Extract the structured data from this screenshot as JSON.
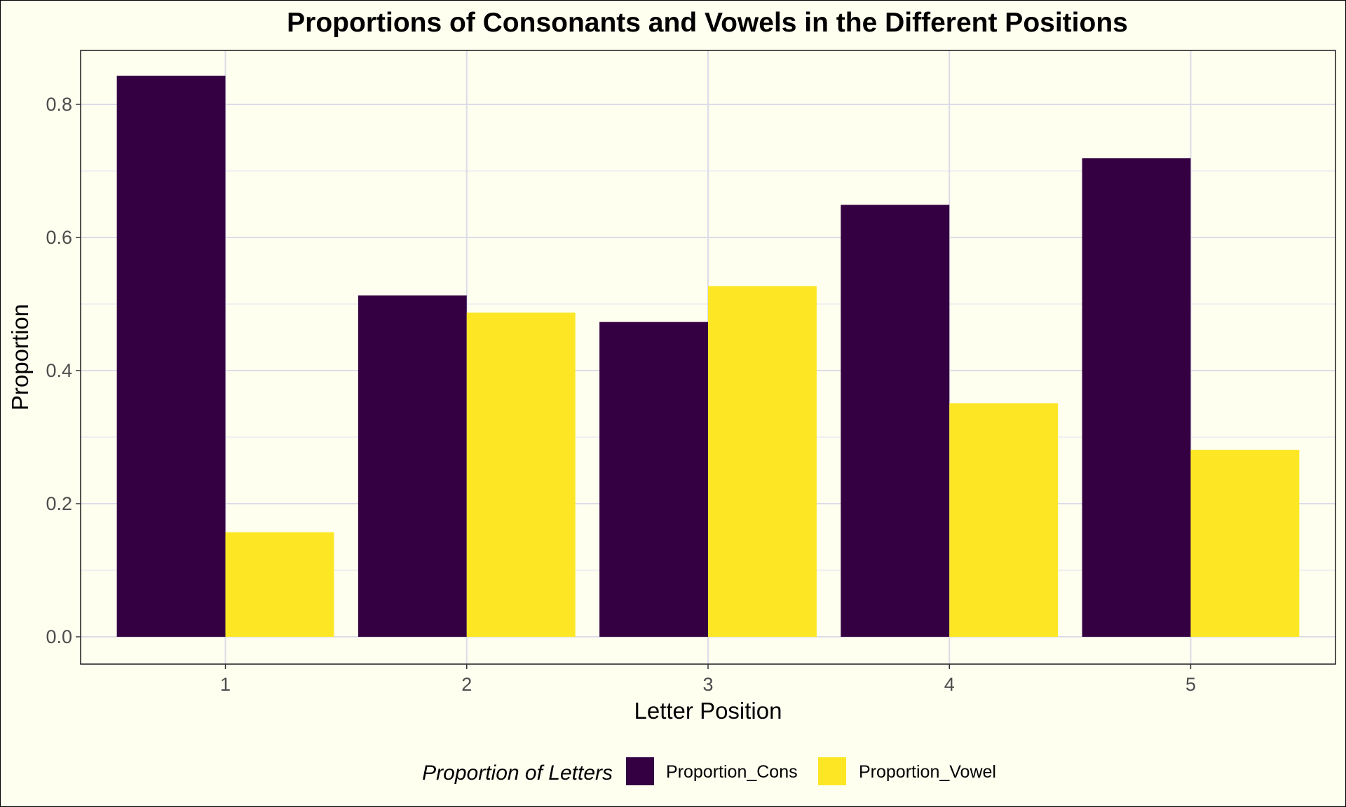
{
  "chart_data": {
    "type": "bar",
    "title": "Proportions of Consonants and Vowels in the Different Positions",
    "xlabel": "Letter Position",
    "ylabel": "Proportion",
    "categories": [
      "1",
      "2",
      "3",
      "4",
      "5"
    ],
    "series": [
      {
        "name": "Proportion_Cons",
        "color": "#340042",
        "values": [
          0.843,
          0.513,
          0.473,
          0.649,
          0.719
        ]
      },
      {
        "name": "Proportion_Vowel",
        "color": "#fde725",
        "values": [
          0.157,
          0.487,
          0.527,
          0.351,
          0.281
        ]
      }
    ],
    "ylim": [
      -0.041,
      0.881
    ],
    "yticks": [
      "0.0",
      "0.2",
      "0.4",
      "0.6",
      "0.8"
    ],
    "grid": true,
    "legend": {
      "title": "Proportion of Letters",
      "position": "bottom"
    }
  }
}
